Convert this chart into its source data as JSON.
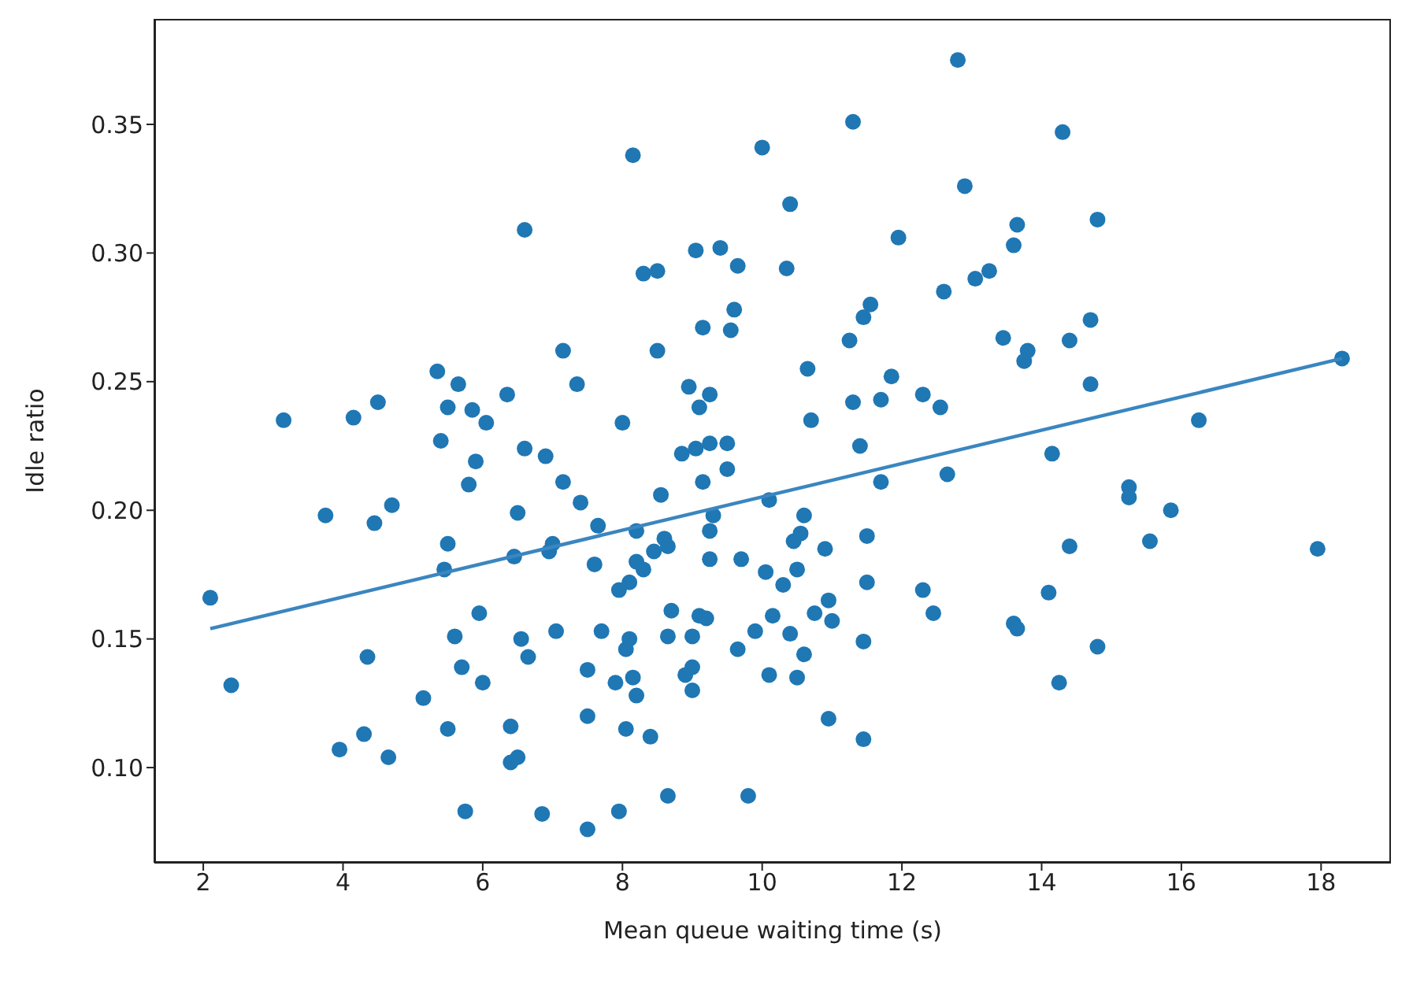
{
  "chart_data": {
    "type": "scatter",
    "xlabel": "Mean queue waiting time (s)",
    "ylabel": "Idle ratio",
    "xlim": [
      1.3,
      19.0
    ],
    "ylim": [
      0.063,
      0.391
    ],
    "xticks": [
      2,
      4,
      6,
      8,
      10,
      12,
      14,
      16,
      18
    ],
    "yticks": [
      {
        "value": 0.1,
        "label": "0.10"
      },
      0.15,
      {
        "value": 0.2,
        "label": "0.20"
      },
      0.25,
      {
        "value": 0.3,
        "label": "0.30"
      },
      0.35
    ],
    "grid": false,
    "legend": false,
    "series": [
      {
        "color": "#1f77b4",
        "marker": "circle",
        "x": [
          2.1,
          2.4,
          3.15,
          3.75,
          3.95,
          4.15,
          4.3,
          4.35,
          4.45,
          4.5,
          4.65,
          4.7,
          5.15,
          5.35,
          5.4,
          5.45,
          5.5,
          5.5,
          5.5,
          5.6,
          5.65,
          5.7,
          5.75,
          5.8,
          5.85,
          5.9,
          5.95,
          6.0,
          6.05,
          6.35,
          6.4,
          6.45,
          6.4,
          6.5,
          6.5,
          6.55,
          6.6,
          6.6,
          6.65,
          6.85,
          6.9,
          6.95,
          7.0,
          7.05,
          7.15,
          7.15,
          7.35,
          7.4,
          7.5,
          7.5,
          7.5,
          7.6,
          7.65,
          7.7,
          7.9,
          7.95,
          7.95,
          8.0,
          8.05,
          8.05,
          8.1,
          8.1,
          8.15,
          8.2,
          8.2,
          8.2,
          8.15,
          8.3,
          8.3,
          8.4,
          8.45,
          8.5,
          8.5,
          8.55,
          8.6,
          8.65,
          8.65,
          8.65,
          8.7,
          8.85,
          8.9,
          8.95,
          9.0,
          9.0,
          9.0,
          9.05,
          9.05,
          9.1,
          9.1,
          9.15,
          9.15,
          9.2,
          9.25,
          9.25,
          9.25,
          9.25,
          9.3,
          9.4,
          9.5,
          9.5,
          9.55,
          9.6,
          9.65,
          9.65,
          9.7,
          9.8,
          9.9,
          10.0,
          10.05,
          10.1,
          10.1,
          10.15,
          10.3,
          10.35,
          10.4,
          10.4,
          10.45,
          10.5,
          10.5,
          10.55,
          10.6,
          10.6,
          10.65,
          10.7,
          10.75,
          10.9,
          10.95,
          10.95,
          11.0,
          11.25,
          11.3,
          11.3,
          11.4,
          11.45,
          11.45,
          11.45,
          11.5,
          11.5,
          11.55,
          11.7,
          11.7,
          11.85,
          11.95,
          12.3,
          12.3,
          12.45,
          12.55,
          12.6,
          12.65,
          12.8,
          12.9,
          13.05,
          13.25,
          13.45,
          13.6,
          13.6,
          13.65,
          13.65,
          13.75,
          13.8,
          14.1,
          14.15,
          14.25,
          14.3,
          14.4,
          14.4,
          14.7,
          14.7,
          14.8,
          14.8,
          15.25,
          15.25,
          15.55,
          15.85,
          16.25,
          17.95,
          18.3
        ],
        "values": [
          0.166,
          0.132,
          0.235,
          0.198,
          0.107,
          0.236,
          0.113,
          0.143,
          0.195,
          0.242,
          0.104,
          0.202,
          0.127,
          0.254,
          0.227,
          0.177,
          0.187,
          0.115,
          0.24,
          0.151,
          0.249,
          0.139,
          0.083,
          0.21,
          0.239,
          0.219,
          0.16,
          0.133,
          0.234,
          0.245,
          0.116,
          0.182,
          0.102,
          0.199,
          0.104,
          0.15,
          0.224,
          0.309,
          0.143,
          0.082,
          0.221,
          0.184,
          0.187,
          0.153,
          0.211,
          0.262,
          0.249,
          0.203,
          0.12,
          0.138,
          0.076,
          0.179,
          0.194,
          0.153,
          0.133,
          0.169,
          0.083,
          0.234,
          0.146,
          0.115,
          0.172,
          0.15,
          0.135,
          0.18,
          0.128,
          0.192,
          0.338,
          0.177,
          0.292,
          0.112,
          0.184,
          0.293,
          0.262,
          0.206,
          0.189,
          0.186,
          0.151,
          0.089,
          0.161,
          0.222,
          0.136,
          0.248,
          0.151,
          0.13,
          0.139,
          0.301,
          0.224,
          0.24,
          0.159,
          0.211,
          0.271,
          0.158,
          0.245,
          0.226,
          0.181,
          0.192,
          0.198,
          0.302,
          0.226,
          0.216,
          0.27,
          0.278,
          0.295,
          0.146,
          0.181,
          0.089,
          0.153,
          0.341,
          0.176,
          0.204,
          0.136,
          0.159,
          0.171,
          0.294,
          0.319,
          0.152,
          0.188,
          0.135,
          0.177,
          0.191,
          0.144,
          0.198,
          0.255,
          0.235,
          0.16,
          0.185,
          0.119,
          0.165,
          0.157,
          0.266,
          0.242,
          0.351,
          0.225,
          0.275,
          0.149,
          0.111,
          0.19,
          0.172,
          0.28,
          0.211,
          0.243,
          0.252,
          0.306,
          0.245,
          0.169,
          0.16,
          0.24,
          0.285,
          0.214,
          0.375,
          0.326,
          0.29,
          0.293,
          0.267,
          0.303,
          0.156,
          0.154,
          0.311,
          0.258,
          0.262,
          0.168,
          0.222,
          0.133,
          0.347,
          0.186,
          0.266,
          0.249,
          0.274,
          0.147,
          0.313,
          0.209,
          0.205,
          0.188,
          0.2,
          0.235,
          0.185,
          0.259
        ]
      },
      {
        "type": "line",
        "color": "#3a86c0",
        "marker": "none",
        "line_style": "solid",
        "x": [
          2.1,
          18.3
        ],
        "values": [
          0.154,
          0.259
        ]
      }
    ]
  }
}
